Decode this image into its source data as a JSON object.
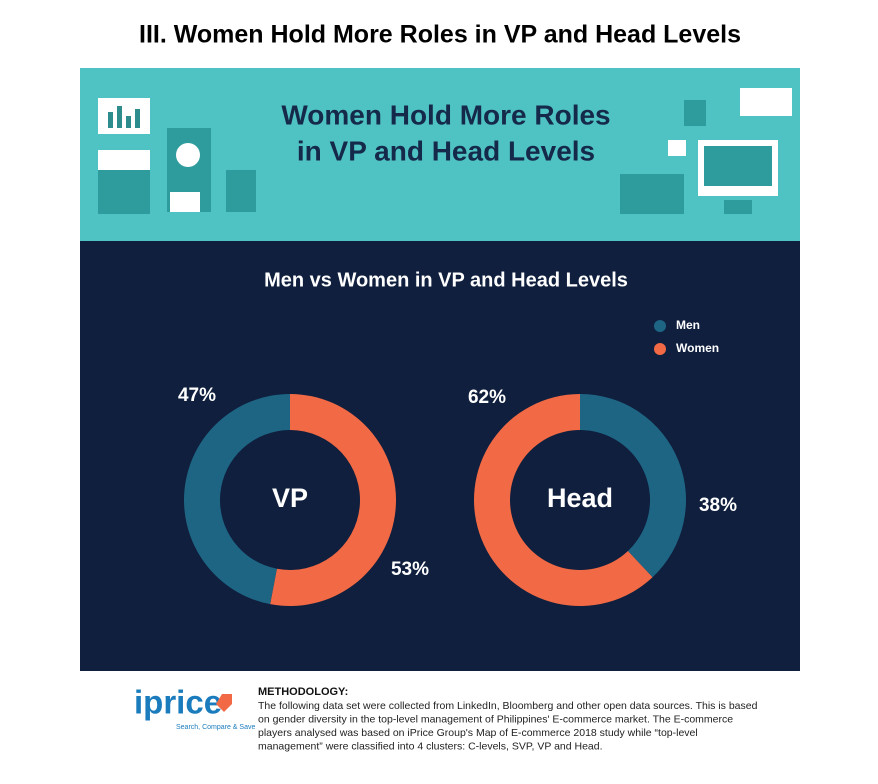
{
  "page_title": "III. Women Hold More Roles in VP and Head Levels",
  "banner_title": [
    "Women Hold More Roles",
    "in VP and Head Levels"
  ],
  "chart_data": {
    "type": "donut",
    "title": "Men vs Women in VP and Head Levels",
    "categories": [
      "Men",
      "Women"
    ],
    "colors": [
      "#1e6584",
      "#f26a45"
    ],
    "series": [
      {
        "name": "VP",
        "values": [
          47,
          53
        ],
        "value_labels": [
          "47%",
          "53%"
        ]
      },
      {
        "name": "Head",
        "values": [
          38,
          62
        ],
        "value_labels": [
          "38%",
          "62%"
        ]
      }
    ]
  },
  "footer": {
    "logo": "iprice",
    "tagline": "Search, Compare & Save",
    "methodology_title": "METHODOLOGY:",
    "methodology_lines": [
      "The following data set were collected from LinkedIn, Bloomberg and other open data sources. This is based",
      "on gender diversity in the top-level management of Philippines' E-commerce market. The E-commerce",
      "players analysed was based on iPrice Group's Map of E-commerce 2018 study while “top-level",
      "management” were classified into 4 clusters: C-levels, SVP, VP and Head."
    ]
  }
}
